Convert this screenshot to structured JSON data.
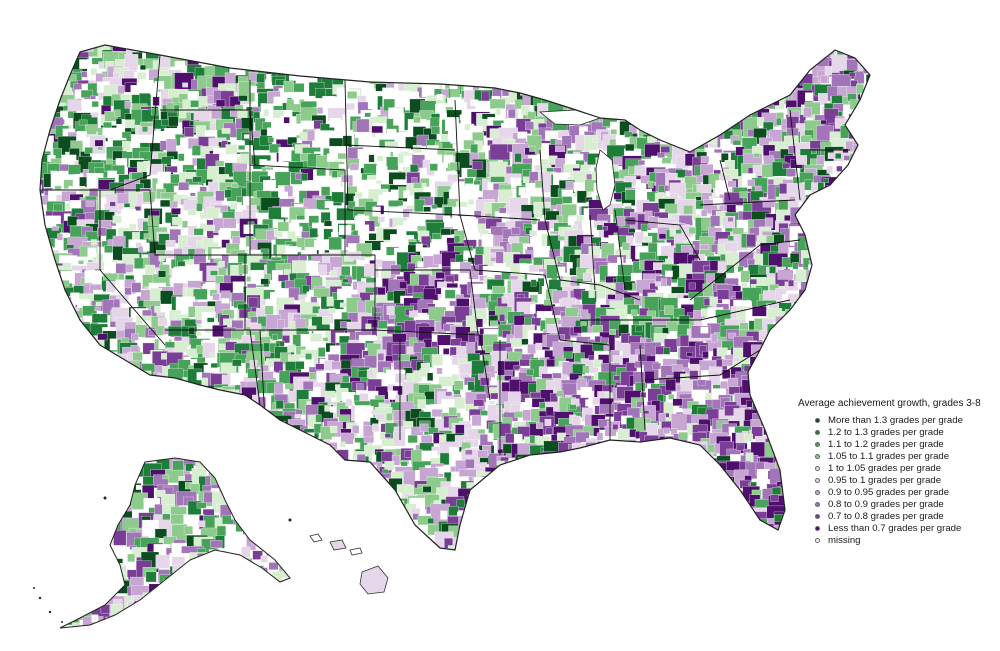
{
  "legend": {
    "title": "Average achievement growth, grades 3-8",
    "items": [
      {
        "label": "More than 1.3 grades per grade",
        "color": "#0b4d1f"
      },
      {
        "label": "1.2 to 1.3 grades per grade",
        "color": "#1f7d3a"
      },
      {
        "label": "1.1 to 1.2 grades per grade",
        "color": "#48a35a"
      },
      {
        "label": "1.05 to 1.1 grades per grade",
        "color": "#8ccb8c"
      },
      {
        "label": "1 to 1.05 grades per grade",
        "color": "#d8eed0"
      },
      {
        "label": "0.95 to 1 grades per grade",
        "color": "#e6d6ea"
      },
      {
        "label": "0.9 to 0.95 grades per grade",
        "color": "#c7a6d3"
      },
      {
        "label": "0.8 to 0.9 grades per grade",
        "color": "#a275b8"
      },
      {
        "label": "0.7 to 0.8 grades per grade",
        "color": "#7b3e97"
      },
      {
        "label": "Less than 0.7 grades per grade",
        "color": "#4e0f6d"
      },
      {
        "label": "missing",
        "color": "#ffffff"
      }
    ]
  }
}
